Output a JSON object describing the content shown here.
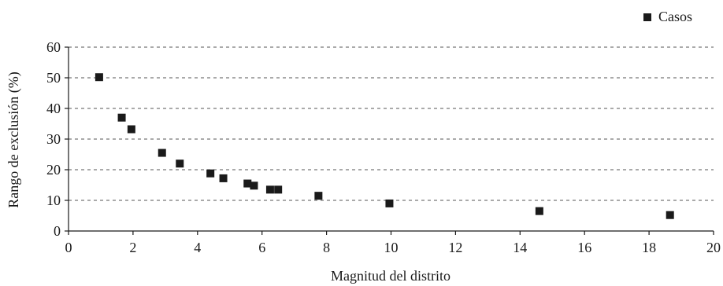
{
  "chart_data": {
    "type": "scatter",
    "title": "",
    "xlabel": "Magnitud del distrito",
    "ylabel": "Rango de exclusión (%)",
    "xlim": [
      0,
      20
    ],
    "ylim": [
      0,
      60
    ],
    "xticks": [
      0,
      2,
      4,
      6,
      8,
      10,
      12,
      14,
      16,
      18,
      20
    ],
    "yticks": [
      0,
      10,
      20,
      30,
      40,
      50,
      60
    ],
    "grid": "horizontal dashed",
    "legend_position": "top-right",
    "series": [
      {
        "name": "Casos",
        "marker": "square",
        "color": "#1a1a1a",
        "points": [
          {
            "x": 0.95,
            "y": 50.2
          },
          {
            "x": 1.65,
            "y": 37.0
          },
          {
            "x": 1.95,
            "y": 33.2
          },
          {
            "x": 2.9,
            "y": 25.5
          },
          {
            "x": 3.45,
            "y": 22.0
          },
          {
            "x": 4.4,
            "y": 18.8
          },
          {
            "x": 4.8,
            "y": 17.2
          },
          {
            "x": 5.55,
            "y": 15.5
          },
          {
            "x": 5.75,
            "y": 14.8
          },
          {
            "x": 6.25,
            "y": 13.5
          },
          {
            "x": 6.5,
            "y": 13.5
          },
          {
            "x": 7.75,
            "y": 11.5
          },
          {
            "x": 9.95,
            "y": 9.0
          },
          {
            "x": 14.6,
            "y": 6.5
          },
          {
            "x": 18.65,
            "y": 5.2
          }
        ]
      }
    ]
  }
}
